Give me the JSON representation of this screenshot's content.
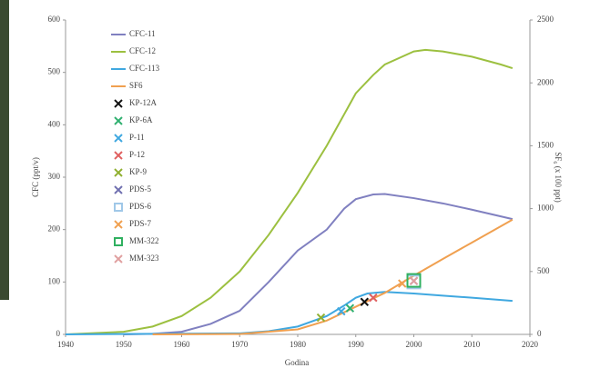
{
  "chart_data": {
    "type": "line",
    "x_label": "Godina",
    "y_label": "CFC (ppt/v)",
    "y2_label": "SF₆ (x 100 ppt)",
    "xlim": [
      1940,
      2020
    ],
    "xticks": [
      1940,
      1950,
      1960,
      1970,
      1980,
      1990,
      2000,
      2010,
      2020
    ],
    "ylim": [
      0,
      600
    ],
    "yticks": [
      0,
      100,
      200,
      300,
      400,
      500,
      600
    ],
    "y2lim": [
      0,
      2500
    ],
    "y2ticks": [
      0,
      500,
      1000,
      1500,
      2000,
      2500
    ],
    "series": [
      {
        "name": "CFC-11",
        "color": "#8080c0",
        "x": [
          1950,
          1955,
          1960,
          1965,
          1970,
          1975,
          1980,
          1985,
          1988,
          1990,
          1993,
          1995,
          2000,
          2005,
          2010,
          2017
        ],
        "values": [
          0,
          1,
          5,
          20,
          45,
          100,
          160,
          200,
          240,
          258,
          267,
          268,
          260,
          250,
          238,
          220
        ]
      },
      {
        "name": "CFC-12",
        "color": "#9cc040",
        "x": [
          1940,
          1950,
          1955,
          1960,
          1965,
          1970,
          1975,
          1980,
          1985,
          1988,
          1990,
          1993,
          1995,
          2000,
          2002,
          2005,
          2010,
          2015,
          2017
        ],
        "values": [
          0,
          5,
          15,
          35,
          70,
          120,
          190,
          270,
          360,
          420,
          460,
          495,
          515,
          540,
          543,
          540,
          530,
          515,
          508
        ]
      },
      {
        "name": "CFC-113",
        "color": "#40a8e0",
        "x": [
          1940,
          1970,
          1975,
          1980,
          1985,
          1988,
          1990,
          1992,
          1995,
          2000,
          2005,
          2010,
          2017
        ],
        "values": [
          0,
          2,
          6,
          15,
          35,
          55,
          70,
          78,
          81,
          78,
          74,
          70,
          64
        ]
      },
      {
        "name": "SF6",
        "color": "#f0a050",
        "axis": "y2",
        "x": [
          1955,
          1970,
          1980,
          1985,
          1990,
          1995,
          2000,
          2005,
          2010,
          2017
        ],
        "values": [
          0,
          3,
          40,
          110,
          220,
          330,
          467,
          600,
          730,
          912
        ]
      }
    ],
    "samples": [
      {
        "name": "KP-12A",
        "color": "#111111",
        "marker": "x",
        "x": 1991.5,
        "y": 62
      },
      {
        "name": "KP-6A",
        "color": "#30b070",
        "marker": "x",
        "x": 1989,
        "y": 50
      },
      {
        "name": "P-11",
        "color": "#40a8e0",
        "marker": "x",
        "x": 1987.5,
        "y": 44
      },
      {
        "name": "P-12",
        "color": "#e06060",
        "marker": "x",
        "x": 1993,
        "y": 70
      },
      {
        "name": "KP-9",
        "color": "#90b030",
        "marker": "x",
        "x": 1984,
        "y": 32
      },
      {
        "name": "PDS-5",
        "color": "#7070b0",
        "marker": "x",
        "x": 2000,
        "y": 102
      },
      {
        "name": "PDS-6",
        "color": "#a0c8e8",
        "marker": "square",
        "x": 2000,
        "y": 100
      },
      {
        "name": "PDS-7",
        "color": "#f0a050",
        "marker": "x",
        "x": 1998,
        "y": 97
      },
      {
        "name": "MM-322",
        "color": "#30b060",
        "marker": "square",
        "x": 2000,
        "y": 103
      },
      {
        "name": "MM-323",
        "color": "#e0a0a0",
        "marker": "x",
        "x": 2000,
        "y": 102
      }
    ]
  }
}
